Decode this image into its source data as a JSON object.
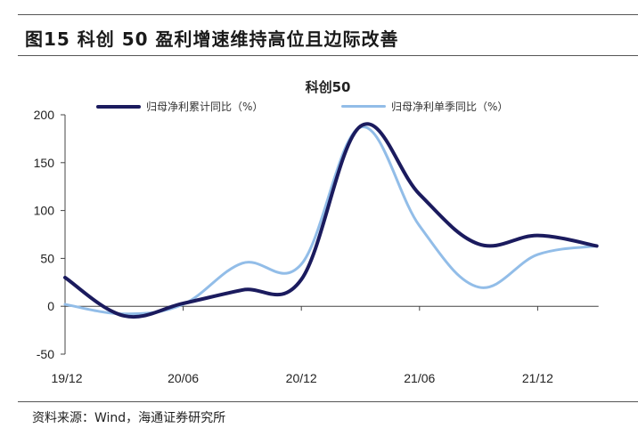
{
  "figure": {
    "title": "图15 科创 50 盈利增速维持高位且边际改善",
    "source": "资料来源：Wind，海通证券研究所"
  },
  "colors": {
    "series_dark": "#1b1b5e",
    "series_light": "#92bde8",
    "axis": "#444444"
  },
  "chart_data": {
    "type": "line",
    "title": "科创50",
    "xlabel": "",
    "ylabel": "",
    "ylim": [
      -50,
      200
    ],
    "yticks": [
      200,
      150,
      100,
      50,
      0,
      -50
    ],
    "x": [
      "19/12",
      "20/03",
      "20/06",
      "20/09",
      "20/12",
      "21/03",
      "21/06",
      "21/09",
      "21/12",
      "22/03"
    ],
    "xtick_labels": [
      "19/12",
      "20/06",
      "20/12",
      "21/06",
      "21/12"
    ],
    "legend_position": "top",
    "grid": false,
    "series": [
      {
        "name": "归母净利累计同比（%）",
        "values": [
          30,
          -10,
          3,
          17,
          28,
          188,
          117,
          65,
          74,
          63
        ]
      },
      {
        "name": "归母净利单季同比（%）",
        "values": [
          2,
          -8,
          2,
          45,
          44,
          187,
          84,
          20,
          54,
          63
        ]
      }
    ]
  }
}
